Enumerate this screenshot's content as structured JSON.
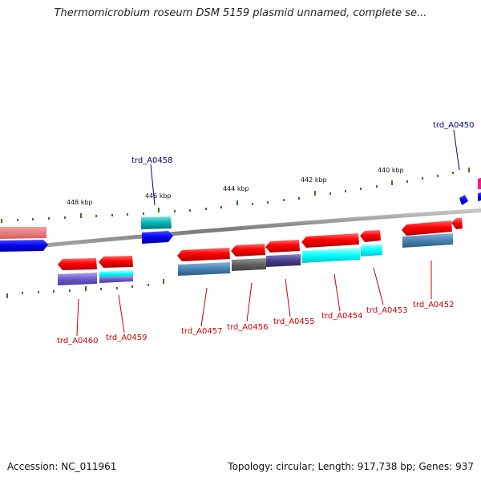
{
  "title": "Thermomicrobium roseum DSM 5159 plasmid unnamed, complete se...",
  "footer": {
    "accession": "Accession: NC_011961",
    "summary": "Topology: circular; Length: 917,738 bp; Genes: 937"
  },
  "scale_labels": [
    "448 kbp",
    "446 kbp",
    "444 kbp",
    "442 kbp",
    "440 kbp"
  ],
  "genes_top": [
    {
      "label": "trd_A0458"
    },
    {
      "label": "trd_A0450"
    }
  ],
  "genes_bottom": [
    {
      "label": "trd_A0460"
    },
    {
      "label": "trd_A0459"
    },
    {
      "label": "trd_A0457"
    },
    {
      "label": "trd_A0456"
    },
    {
      "label": "trd_A0455"
    },
    {
      "label": "trd_A0454"
    },
    {
      "label": "trd_A0453"
    },
    {
      "label": "trd_A0452"
    }
  ],
  "colors": {
    "forward_gene": "#ff0000",
    "cog_blue": "#0000ee",
    "cog_cyan": "#00c8c8",
    "cog_steel": "#4682b4",
    "cog_slate": "#6a5acd",
    "cog_gray": "#606060",
    "cog_navy": "#483d8b",
    "cog_aqua": "#00ffff",
    "tick": "#2e7d1a",
    "backbone": "#888888"
  }
}
